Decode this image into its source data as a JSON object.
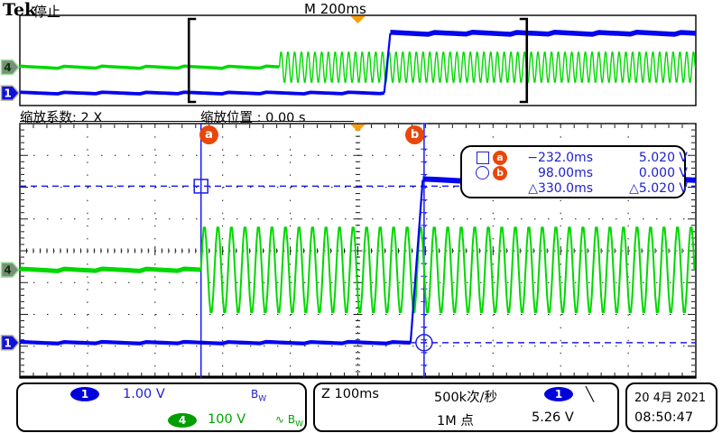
{
  "header": {
    "brand": "Tek",
    "status": "停止",
    "timebase": "M 200ms"
  },
  "zoom_bar": {
    "factor_label": "缩放系数: 2 X",
    "position_label": "缩放位置 : 0.00 s"
  },
  "cursor_readout": {
    "rows": [
      {
        "icon": "square-icon",
        "badge": "a",
        "time": "−232.0ms",
        "value": "5.020 V"
      },
      {
        "icon": "circle-icon",
        "badge": "b",
        "time": "98.00ms",
        "value": "0.000 V"
      },
      {
        "icon": "none",
        "badge": "",
        "time": "△330.0ms",
        "value": "△5.020 V"
      }
    ]
  },
  "bottom_bar": {
    "ch1": {
      "badge": "1",
      "scale": "1.00 V",
      "bw_main": "B",
      "bw_sub": "W"
    },
    "ch4": {
      "badge": "4",
      "scale": "100 V",
      "coupling": "∿",
      "bw_main": "B",
      "bw_sub": "W"
    },
    "horizontal": {
      "zoom_scale": "Z 100ms",
      "acq_rate": "500k次/秒",
      "record_length": "1M 点",
      "trig_badge": "1",
      "trig_slope": "╲",
      "trig_level": "5.26 V"
    },
    "datetime": {
      "date": "20 4月 2021",
      "time": "08:50:47"
    }
  },
  "chart_data": {
    "type": "line",
    "title": "Tek oscilloscope stopped acquisition with 2X zoom window",
    "overview": {
      "time_per_div_ms": 200,
      "divisions_x": 10,
      "divisions_y": 8,
      "zoom_window_start_ms": -500,
      "zoom_window_end_ms": 500
    },
    "zoom_view": {
      "time_per_div_ms": 100,
      "divisions_x": 10,
      "divisions_y": 8
    },
    "series": [
      {
        "name": "CH1",
        "badge": "1",
        "color": "#0505ee",
        "fill": "#1010dc",
        "edge": "#b8b890",
        "text": "#ffffff",
        "volts_per_div": 1.0,
        "position_div": -2.89,
        "shape": "step",
        "low_v": 0.0,
        "high_v": 5.02,
        "step_start_ms": 78,
        "step_end_ms": 96
      },
      {
        "name": "CH4",
        "badge": "4",
        "color": "#00d800",
        "fill": "#7c8c7c",
        "edge": "#98e698",
        "text": "#003c00",
        "volts_per_div": 100,
        "position_div": -0.6,
        "shape": "sine_burst",
        "sine_start_ms": -232,
        "frequency_hz": 50,
        "amplitude_v": 140
      }
    ],
    "cursors": {
      "a_time_ms": -232.0,
      "a_volts": 5.02,
      "b_time_ms": 98.0,
      "b_volts": 0.0,
      "delta_time_ms": 330.0,
      "delta_volts": 5.02,
      "color": "#1c1cee"
    },
    "trigger": {
      "position_ms": 0,
      "level_v": 5.26,
      "marker_color": "#ff9c00"
    },
    "grid_color": "#1a1a1a"
  }
}
